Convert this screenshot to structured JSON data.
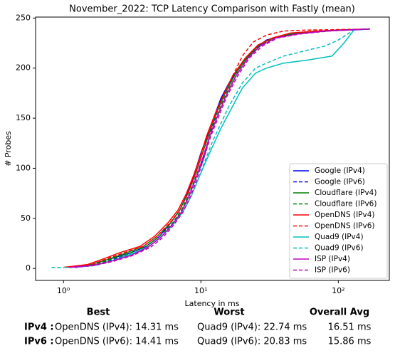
{
  "chart_data": {
    "type": "line",
    "title": "November_2022: TCP Latency Comparison with Fastly (mean)",
    "x_label": "Latency in ms",
    "y_label": "# Probes",
    "xscale": "log",
    "xlim": [
      0.627,
      235
    ],
    "ylim": [
      -11.95,
      250.95
    ],
    "xticks": [
      {
        "value": 1,
        "label": "10⁰"
      },
      {
        "value": 10,
        "label": "10¹"
      },
      {
        "value": 100,
        "label": "10²"
      }
    ],
    "yticks": [
      0,
      50,
      100,
      150,
      200,
      250
    ],
    "legend": "lower right",
    "series": [
      {
        "name": "Google (IPv4)",
        "color": "#0000ff",
        "linestyle": "solid",
        "x": [
          1.0,
          1.5,
          2.0,
          3.0,
          4.0,
          5.0,
          6.0,
          7.0,
          8.0,
          9.0,
          10.0,
          11.0,
          12.0,
          14.0,
          16.0,
          20.0,
          25.0,
          30.0,
          40.0,
          60.0,
          100.0,
          170.0
        ],
        "values": [
          1,
          3,
          8,
          15,
          22,
          32,
          45,
          58,
          75,
          95,
          115,
          130,
          145,
          170,
          185,
          205,
          220,
          228,
          233,
          236,
          238,
          239
        ]
      },
      {
        "name": "Google (IPv6)",
        "color": "#0000ff",
        "linestyle": "dashed",
        "x": [
          1.1,
          1.6,
          2.2,
          3.2,
          4.2,
          5.2,
          6.3,
          7.3,
          8.3,
          9.3,
          10.5,
          12.0,
          14.0,
          16.0,
          20.0,
          25.0,
          30.0,
          40.0,
          60.0,
          100.0,
          170.0
        ],
        "values": [
          1,
          3,
          8,
          15,
          22,
          32,
          45,
          58,
          75,
          92,
          110,
          140,
          168,
          184,
          204,
          219,
          228,
          233,
          236,
          238,
          239
        ]
      },
      {
        "name": "Cloudflare (IPv4)",
        "color": "#008000",
        "linestyle": "solid",
        "x": [
          1.0,
          1.5,
          2.0,
          2.8,
          3.8,
          4.8,
          6.0,
          7.0,
          8.0,
          9.0,
          10.0,
          11.5,
          13.0,
          15.0,
          18.0,
          22.0,
          27.0,
          35.0,
          50.0,
          80.0,
          170.0
        ],
        "values": [
          1,
          3,
          8,
          15,
          22,
          32,
          45,
          58,
          74,
          92,
          110,
          135,
          155,
          175,
          195,
          212,
          224,
          231,
          235,
          237,
          239
        ]
      },
      {
        "name": "Cloudflare (IPv6)",
        "color": "#008000",
        "linestyle": "dashed",
        "x": [
          1.1,
          1.6,
          2.1,
          3.0,
          4.0,
          5.0,
          6.2,
          7.2,
          8.2,
          9.2,
          10.3,
          11.8,
          13.3,
          15.3,
          18.5,
          22.5,
          28.0,
          36.0,
          52.0,
          85.0,
          170.0
        ],
        "values": [
          1,
          3,
          8,
          15,
          22,
          32,
          45,
          58,
          74,
          92,
          110,
          135,
          155,
          175,
          195,
          212,
          224,
          231,
          235,
          237,
          239
        ]
      },
      {
        "name": "OpenDNS (IPv4)",
        "color": "#ff0000",
        "linestyle": "solid",
        "x": [
          1.0,
          1.5,
          2.0,
          2.6,
          3.6,
          4.6,
          5.8,
          6.8,
          7.8,
          8.8,
          9.8,
          11.0,
          12.5,
          14.5,
          17.0,
          21.0,
          26.0,
          33.0,
          45.0,
          70.0,
          170.0
        ],
        "values": [
          1,
          4,
          10,
          16,
          22,
          32,
          46,
          58,
          74,
          92,
          110,
          132,
          152,
          172,
          192,
          210,
          223,
          230,
          235,
          237,
          239
        ]
      },
      {
        "name": "OpenDNS (IPv6)",
        "color": "#ff0000",
        "linestyle": "dashed",
        "x": [
          1.1,
          1.6,
          2.1,
          2.8,
          3.8,
          4.8,
          6.0,
          7.0,
          8.0,
          9.0,
          10.0,
          11.2,
          12.7,
          14.5,
          17.0,
          20.0,
          24.0,
          30.0,
          40.0,
          60.0,
          170.0
        ],
        "values": [
          1,
          4,
          10,
          16,
          22,
          32,
          46,
          58,
          74,
          92,
          110,
          132,
          152,
          172,
          192,
          212,
          226,
          233,
          237,
          238,
          239
        ]
      },
      {
        "name": "Quad9 (IPv4)",
        "color": "#00bfbf",
        "linestyle": "solid",
        "x": [
          1.2,
          1.7,
          2.3,
          3.2,
          4.2,
          5.2,
          6.4,
          7.5,
          8.5,
          9.5,
          10.5,
          12.0,
          14.0,
          16.0,
          20.0,
          25.0,
          30.0,
          40.0,
          60.0,
          90.0,
          110.0,
          130.0,
          170.0
        ],
        "values": [
          1,
          3,
          8,
          15,
          22,
          32,
          45,
          58,
          72,
          88,
          102,
          120,
          140,
          155,
          180,
          195,
          200,
          205,
          208,
          212,
          225,
          238,
          239
        ]
      },
      {
        "name": "Quad9 (IPv6)",
        "color": "#00bfbf",
        "linestyle": "dashed",
        "x": [
          0.82,
          1.2,
          1.7,
          2.3,
          3.2,
          4.2,
          5.2,
          6.4,
          7.5,
          8.5,
          9.5,
          10.5,
          12.0,
          14.0,
          16.0,
          20.0,
          25.0,
          30.0,
          40.0,
          60.0,
          80.0,
          100.0,
          130.0,
          170.0
        ],
        "values": [
          1,
          1,
          3,
          8,
          15,
          22,
          32,
          45,
          58,
          72,
          88,
          104,
          125,
          145,
          162,
          185,
          200,
          205,
          212,
          218,
          222,
          228,
          238,
          239
        ]
      },
      {
        "name": "ISP (IPv4)",
        "color": "#bf00bf",
        "linestyle": "solid",
        "x": [
          1.1,
          1.6,
          2.2,
          3.1,
          4.1,
          5.1,
          6.2,
          7.2,
          8.2,
          9.2,
          10.2,
          11.6,
          13.2,
          15.2,
          18.0,
          22.0,
          27.0,
          35.0,
          50.0,
          80.0,
          170.0
        ],
        "values": [
          1,
          3,
          7,
          13,
          21,
          31,
          44,
          56,
          72,
          90,
          108,
          132,
          152,
          172,
          192,
          210,
          222,
          230,
          234,
          237,
          239
        ]
      },
      {
        "name": "ISP (IPv6)",
        "color": "#bf00bf",
        "linestyle": "dashed",
        "x": [
          1.2,
          1.7,
          2.3,
          3.2,
          4.3,
          5.3,
          6.4,
          7.4,
          8.4,
          9.4,
          10.4,
          11.8,
          13.5,
          15.5,
          18.5,
          22.5,
          28.0,
          36.0,
          52.0,
          85.0,
          170.0
        ],
        "values": [
          1,
          3,
          7,
          13,
          21,
          31,
          44,
          56,
          72,
          90,
          108,
          132,
          152,
          172,
          192,
          210,
          222,
          230,
          234,
          237,
          239
        ]
      }
    ]
  },
  "summary": {
    "headers": [
      "Best",
      "Worst",
      "Overall Avg"
    ],
    "rows": [
      [
        "IPv4 :",
        "OpenDNS (IPv4): 14.31 ms",
        "Quad9 (IPv4): 22.74 ms",
        "16.51 ms"
      ],
      [
        "IPv6 :",
        "OpenDNS (IPv6): 14.41 ms",
        "Quad9 (IPv6): 20.83 ms",
        "15.86 ms"
      ]
    ]
  }
}
